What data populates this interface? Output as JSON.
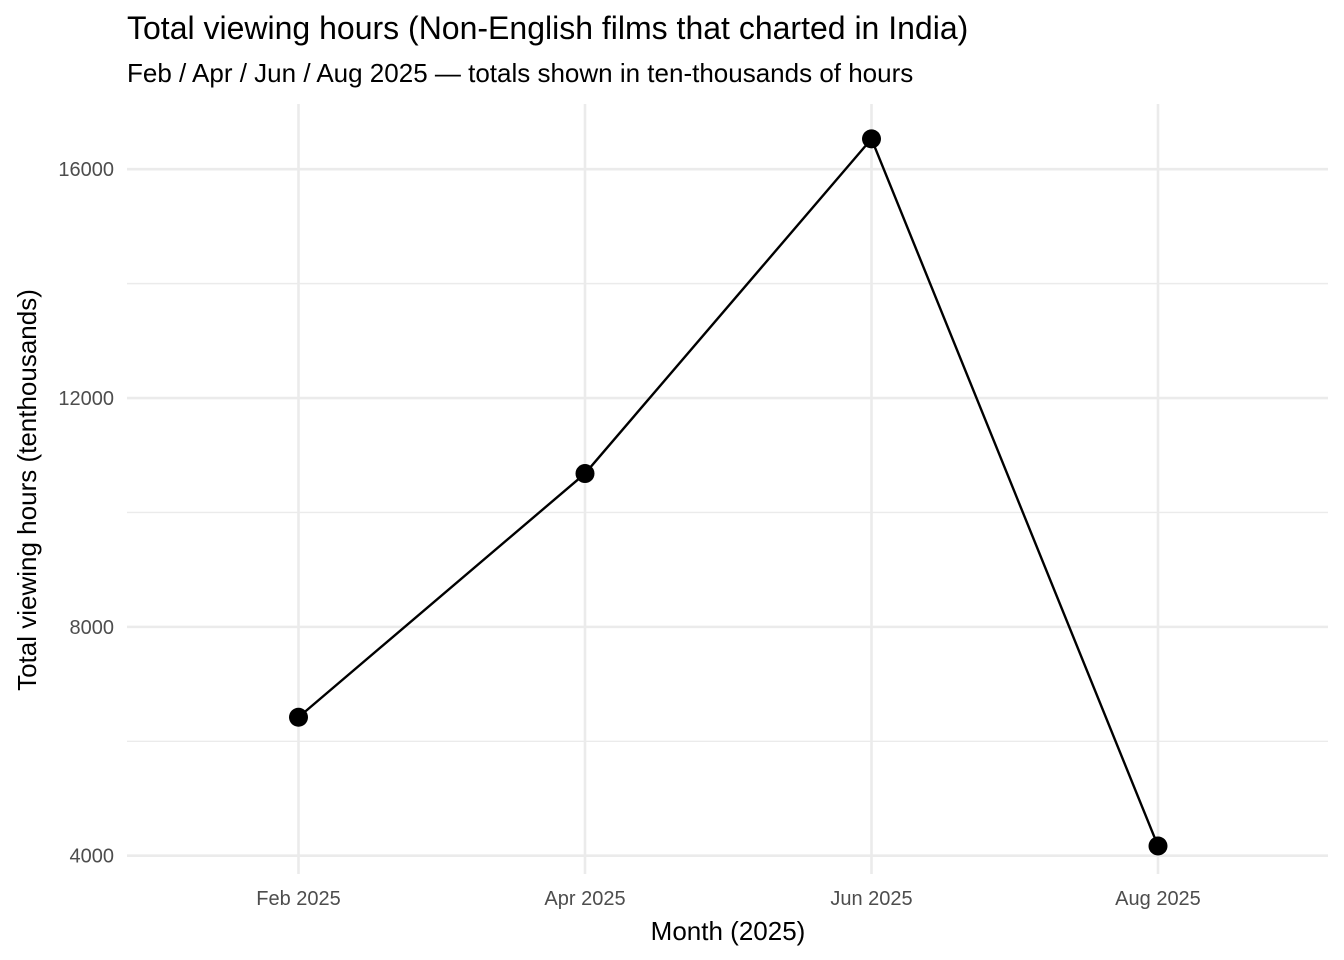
{
  "chart_data": {
    "type": "line",
    "title": "Total viewing hours (Non-English films that charted in India)",
    "subtitle": "Feb / Apr / Jun / Aug 2025 — totals shown in ten-thousands of hours",
    "xlabel": "Month (2025)",
    "ylabel": "Total viewing hours (tenthousands)",
    "categories": [
      "Feb 2025",
      "Apr 2025",
      "Jun 2025",
      "Aug 2025"
    ],
    "values": [
      6420,
      10680,
      16530,
      4170
    ],
    "ylim": [
      3680,
      17140
    ],
    "yticks": [
      4000,
      8000,
      12000,
      16000
    ],
    "grid": true,
    "legend": "none",
    "colors": {
      "line": "#000000",
      "points": "#000000",
      "grid": "#ebebeb",
      "tick_text": "#4d4d4d"
    }
  }
}
